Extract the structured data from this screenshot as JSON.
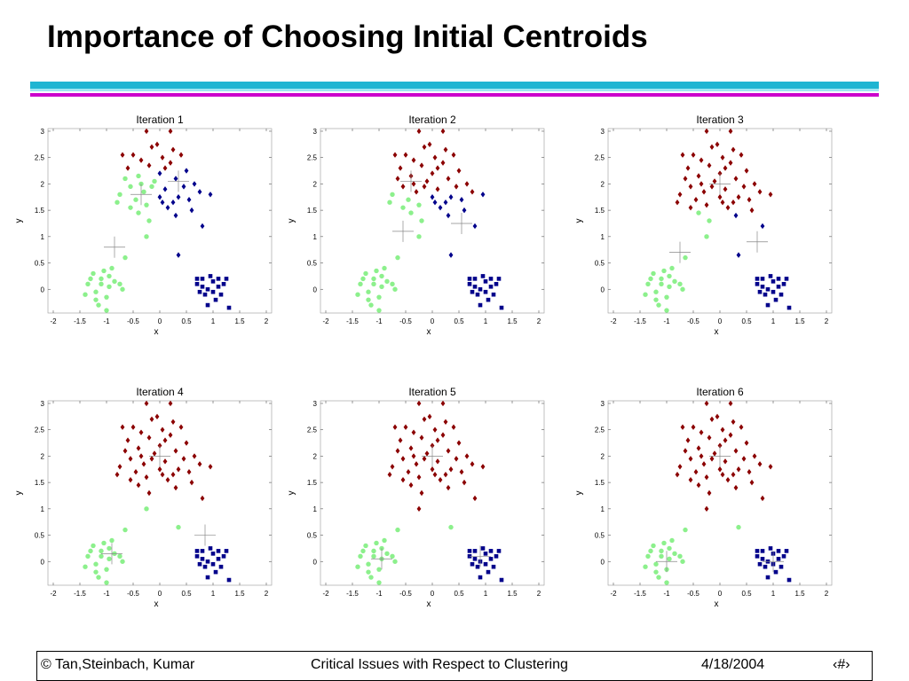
{
  "slide": {
    "title": "Importance of Choosing Initial Centroids"
  },
  "colors": {
    "stripe_cyan": "#1fb5d2",
    "stripe_magenta": "#cc00cc",
    "cluster_red": "#8b0000",
    "cluster_green": "#8cf08c",
    "cluster_blue": "#00008b"
  },
  "footer": {
    "copyright": "© Tan,Steinbach, Kumar",
    "topic": "Critical Issues with Respect to Clustering",
    "date": "4/18/2004",
    "page": "‹#›"
  },
  "chart_data": [
    {
      "type": "scatter",
      "title": "Iteration 1",
      "xlabel": "x",
      "ylabel": "y",
      "xlim": [
        -2.1,
        2.1
      ],
      "ylim": [
        -0.45,
        3.05
      ],
      "xticks": [
        "-2",
        "-1.5",
        "-1",
        "-0.5",
        "0",
        "0.5",
        "1",
        "1.5",
        "2"
      ],
      "yticks": [
        "0",
        "0.5",
        "1",
        "1.5",
        "2",
        "2.5",
        "3"
      ],
      "centroids": [
        [
          -0.35,
          1.8
        ],
        [
          0.35,
          2.05
        ],
        [
          -0.85,
          0.8
        ]
      ],
      "assignments": {
        "split": 0.0,
        "upper_red_cutoff": 2.3,
        "lower_left": "green",
        "lower_right": "blue"
      }
    },
    {
      "type": "scatter",
      "title": "Iteration 2",
      "xlabel": "x",
      "ylabel": "y",
      "xlim": [
        -2.1,
        2.1
      ],
      "ylim": [
        -0.45,
        3.05
      ],
      "xticks": [
        "-2",
        "-1.5",
        "-1",
        "-0.5",
        "0",
        "0.5",
        "1",
        "1.5",
        "2"
      ],
      "yticks": [
        "0",
        "0.5",
        "1",
        "1.5",
        "2",
        "2.5",
        "3"
      ],
      "centroids": [
        [
          -0.4,
          2.05
        ],
        [
          -0.55,
          1.1
        ],
        [
          0.55,
          1.25
        ]
      ],
      "assignments": {
        "split": 0.0,
        "upper_red_cutoff": 1.85,
        "lower_left": "green",
        "lower_right": "blue"
      }
    },
    {
      "type": "scatter",
      "title": "Iteration 3",
      "xlabel": "x",
      "ylabel": "y",
      "xlim": [
        -2.1,
        2.1
      ],
      "ylim": [
        -0.45,
        3.05
      ],
      "xticks": [
        "-2",
        "-1.5",
        "-1",
        "-0.5",
        "0",
        "0.5",
        "1",
        "1.5",
        "2"
      ],
      "yticks": [
        "0",
        "0.5",
        "1",
        "1.5",
        "2",
        "2.5",
        "3"
      ],
      "centroids": [
        [
          0.0,
          2.0
        ],
        [
          -0.75,
          0.7
        ],
        [
          0.7,
          0.9
        ]
      ],
      "assignments": {
        "split": 0.3,
        "upper_red_cutoff": 1.5,
        "lower_left": "green",
        "lower_right": "blue"
      }
    },
    {
      "type": "scatter",
      "title": "Iteration 4",
      "xlabel": "x",
      "ylabel": "y",
      "xlim": [
        -2.1,
        2.1
      ],
      "ylim": [
        -0.45,
        3.05
      ],
      "xticks": [
        "-2",
        "-1.5",
        "-1",
        "-0.5",
        "0",
        "0.5",
        "1",
        "1.5",
        "2"
      ],
      "yticks": [
        "0",
        "0.5",
        "1",
        "1.5",
        "2",
        "2.5",
        "3"
      ],
      "centroids": [
        [
          0.0,
          2.0
        ],
        [
          -0.9,
          0.15
        ],
        [
          0.85,
          0.5
        ]
      ],
      "assignments": {
        "split": 0.5,
        "upper_red_cutoff": 1.2,
        "lower_left": "green",
        "lower_right": "blue"
      }
    },
    {
      "type": "scatter",
      "title": "Iteration 5",
      "xlabel": "x",
      "ylabel": "y",
      "xlim": [
        -2.1,
        2.1
      ],
      "ylim": [
        -0.45,
        3.05
      ],
      "xticks": [
        "-2",
        "-1.5",
        "-1",
        "-0.5",
        "0",
        "0.5",
        "1",
        "1.5",
        "2"
      ],
      "yticks": [
        "0",
        "0.5",
        "1",
        "1.5",
        "2",
        "2.5",
        "3"
      ],
      "centroids": [
        [
          0.0,
          2.0
        ],
        [
          -0.95,
          0.05
        ],
        [
          0.9,
          0.1
        ]
      ],
      "assignments": {
        "split": 0.5,
        "upper_red_cutoff": 0.95,
        "lower_left": "green",
        "lower_right": "blue"
      }
    },
    {
      "type": "scatter",
      "title": "Iteration 6",
      "xlabel": "x",
      "ylabel": "y",
      "xlim": [
        -2.1,
        2.1
      ],
      "ylim": [
        -0.45,
        3.05
      ],
      "xticks": [
        "-2",
        "-1.5",
        "-1",
        "-0.5",
        "0",
        "0.5",
        "1",
        "1.5",
        "2"
      ],
      "yticks": [
        "0",
        "0.5",
        "1",
        "1.5",
        "2",
        "2.5",
        "3"
      ],
      "centroids": [
        [
          0.0,
          2.0
        ],
        [
          -1.0,
          0.0
        ],
        [
          1.0,
          0.0
        ]
      ],
      "assignments": {
        "split": 0.5,
        "upper_red_cutoff": 0.95,
        "lower_left": "green",
        "lower_right": "blue"
      }
    }
  ],
  "points": [
    [
      -0.5,
      2.55
    ],
    [
      -0.35,
      2.45
    ],
    [
      -0.15,
      2.7
    ],
    [
      0.05,
      2.5
    ],
    [
      0.25,
      2.65
    ],
    [
      -0.6,
      2.3
    ],
    [
      -0.4,
      2.15
    ],
    [
      -0.2,
      2.35
    ],
    [
      0.0,
      2.2
    ],
    [
      0.2,
      2.4
    ],
    [
      -0.55,
      1.95
    ],
    [
      -0.3,
      1.85
    ],
    [
      -0.1,
      2.05
    ],
    [
      0.1,
      1.9
    ],
    [
      0.3,
      2.1
    ],
    [
      -0.45,
      1.7
    ],
    [
      -0.25,
      1.6
    ],
    [
      0.0,
      1.75
    ],
    [
      0.15,
      1.55
    ],
    [
      0.35,
      1.75
    ],
    [
      -0.65,
      2.1
    ],
    [
      -0.75,
      1.8
    ],
    [
      0.45,
      1.95
    ],
    [
      0.55,
      1.7
    ],
    [
      0.75,
      1.85
    ],
    [
      0.6,
      1.5
    ],
    [
      0.8,
      1.2
    ],
    [
      -0.4,
      1.45
    ],
    [
      -0.2,
      1.3
    ],
    [
      -0.05,
      2.75
    ],
    [
      0.4,
      2.55
    ],
    [
      -0.25,
      3.0
    ],
    [
      0.2,
      3.0
    ],
    [
      0.5,
      2.25
    ],
    [
      -0.7,
      2.55
    ],
    [
      0.1,
      2.3
    ],
    [
      -0.35,
      2.0
    ],
    [
      0.25,
      1.65
    ],
    [
      0.65,
      2.0
    ],
    [
      -0.15,
      1.95
    ],
    [
      0.05,
      1.65
    ],
    [
      -0.55,
      1.55
    ],
    [
      -0.8,
      1.65
    ],
    [
      0.3,
      1.4
    ],
    [
      0.95,
      1.8
    ],
    [
      -0.25,
      1.0
    ],
    [
      0.35,
      0.65
    ],
    [
      -1.35,
      0.1
    ],
    [
      -1.2,
      -0.05
    ],
    [
      -1.1,
      0.2
    ],
    [
      -0.95,
      0.05
    ],
    [
      -1.0,
      -0.15
    ],
    [
      -0.85,
      0.15
    ],
    [
      -1.25,
      0.3
    ],
    [
      -1.05,
      0.35
    ],
    [
      -0.7,
      0.0
    ],
    [
      -1.15,
      -0.3
    ],
    [
      -1.4,
      -0.1
    ],
    [
      -0.9,
      0.4
    ],
    [
      -1.3,
      0.2
    ],
    [
      -0.95,
      0.25
    ],
    [
      -0.75,
      0.1
    ],
    [
      -1.1,
      0.1
    ],
    [
      -1.0,
      -0.4
    ],
    [
      -0.65,
      0.6
    ],
    [
      -1.2,
      -0.2
    ],
    [
      0.7,
      0.1
    ],
    [
      0.8,
      0.2
    ],
    [
      0.9,
      0.0
    ],
    [
      1.0,
      0.15
    ],
    [
      1.1,
      0.05
    ],
    [
      0.85,
      -0.1
    ],
    [
      1.05,
      -0.2
    ],
    [
      1.2,
      0.1
    ],
    [
      0.95,
      0.25
    ],
    [
      0.75,
      -0.05
    ],
    [
      1.15,
      -0.1
    ],
    [
      1.25,
      0.2
    ],
    [
      0.9,
      -0.3
    ],
    [
      1.3,
      -0.35
    ],
    [
      0.8,
      0.05
    ],
    [
      1.0,
      -0.05
    ],
    [
      1.1,
      0.2
    ],
    [
      0.7,
      0.2
    ]
  ]
}
